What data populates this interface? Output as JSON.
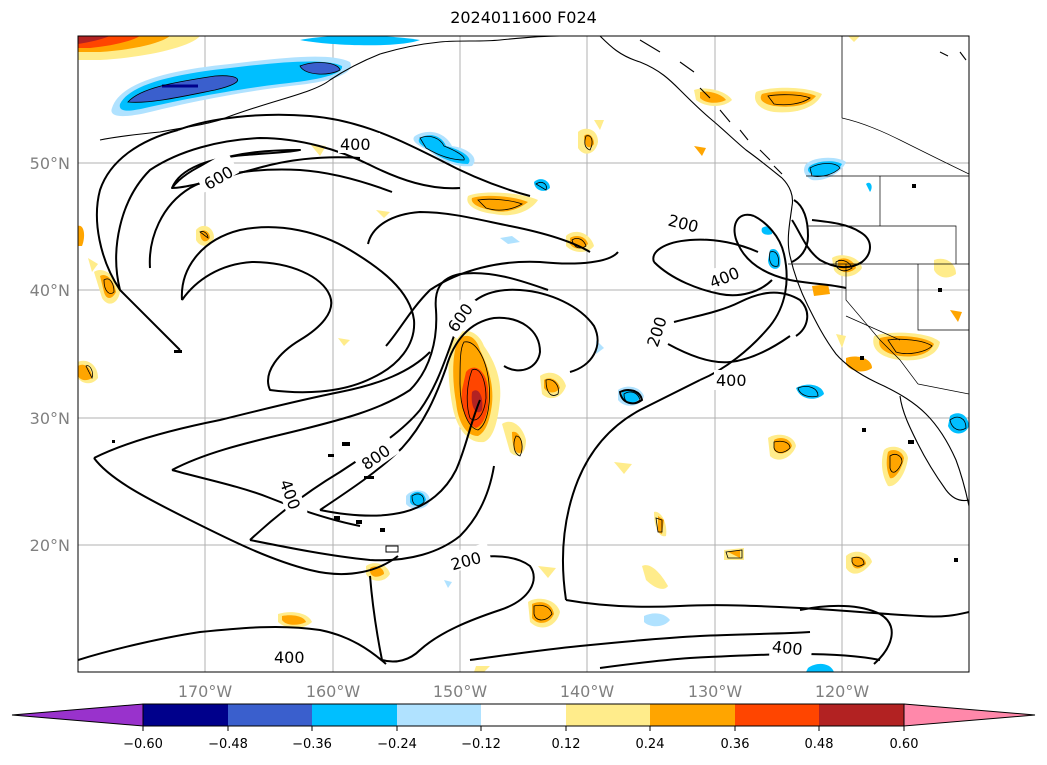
{
  "title": "2024011600 F024",
  "map": {
    "lon_ticks": [
      "170°W",
      "160°W",
      "150°W",
      "140°W",
      "130°W",
      "120°W"
    ],
    "lat_ticks": [
      "50°N",
      "40°N",
      "30°N",
      "20°N"
    ],
    "contour_labels": [
      "400",
      "600",
      "200",
      "400",
      "600",
      "200",
      "400",
      "800",
      "400",
      "200",
      "400",
      "400"
    ]
  },
  "colorbar": {
    "ticks": [
      "−0.60",
      "−0.48",
      "−0.36",
      "−0.24",
      "−0.12",
      "0.12",
      "0.24",
      "0.36",
      "0.48",
      "0.60"
    ],
    "colors": [
      "#9932cc",
      "#00008b",
      "#3a5fcd",
      "#00bfff",
      "#b0e2ff",
      "#ffffff",
      "#ffec8b",
      "#ffa500",
      "#ff4500",
      "#b22222",
      "#ff88aa"
    ]
  }
}
